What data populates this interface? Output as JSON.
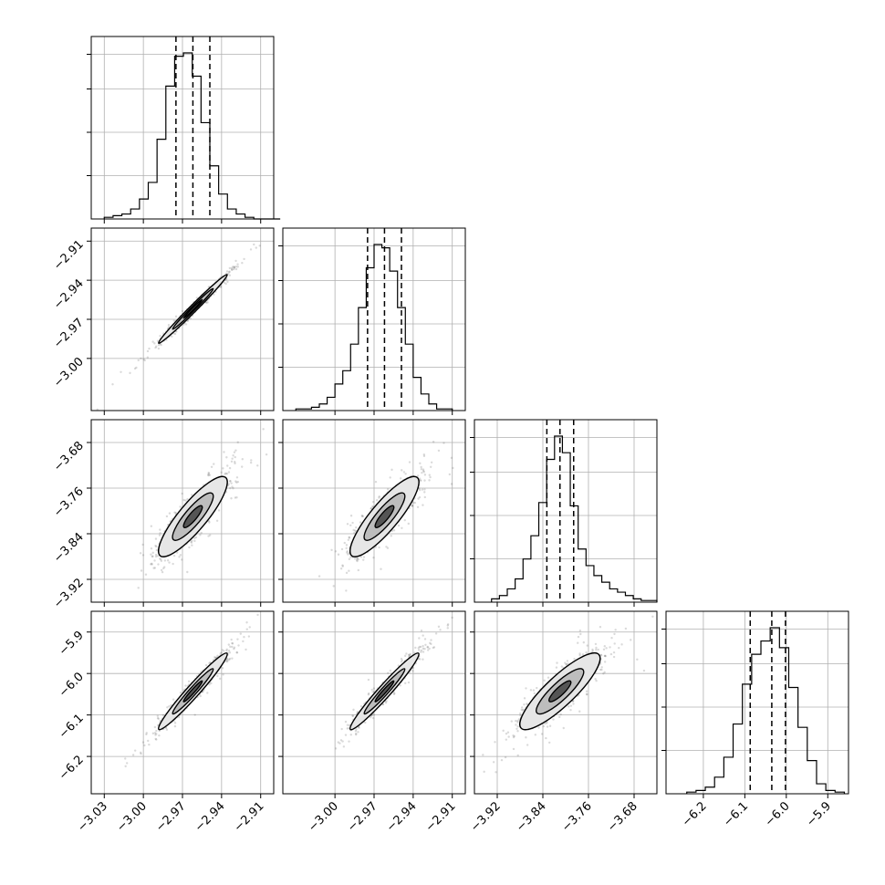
{
  "chart_data": {
    "type": "corner",
    "title": "",
    "grid": true,
    "parameters": [
      {
        "index": 0,
        "xlim": [
          -3.04,
          -2.9
        ],
        "ticks": [
          -3.03,
          -3.0,
          -2.97,
          -2.94,
          -2.91
        ],
        "tick_labels": [
          "−3.03",
          "−3.00",
          "−2.97",
          "−2.94",
          "−2.91"
        ]
      },
      {
        "index": 1,
        "xlim": [
          -3.04,
          -2.9
        ],
        "ticks": [
          -3.0,
          -2.97,
          -2.94,
          -2.91
        ],
        "tick_labels": [
          "−3.00",
          "−2.97",
          "−2.94",
          "−2.91"
        ]
      },
      {
        "index": 2,
        "xlim": [
          -3.96,
          -3.64
        ],
        "ticks": [
          -3.92,
          -3.84,
          -3.76,
          -3.68
        ],
        "tick_labels": [
          "−3.92",
          "−3.84",
          "−3.76",
          "−3.68"
        ]
      },
      {
        "index": 3,
        "xlim": [
          -6.29,
          -5.85
        ],
        "ticks": [
          -6.2,
          -6.1,
          -6.0,
          -5.9
        ],
        "tick_labels": [
          "−6.2",
          "−6.1",
          "−6.0",
          "−5.9"
        ]
      }
    ],
    "histograms": [
      {
        "param": 0,
        "counts": [
          1,
          2,
          3,
          6,
          12,
          22,
          48,
          80,
          98,
          100,
          86,
          58,
          32,
          15,
          6,
          3,
          1,
          0,
          0,
          0
        ],
        "quantiles": [
          -2.975,
          -2.962,
          -2.949
        ],
        "range": [
          -3.03,
          -2.895
        ]
      },
      {
        "param": 1,
        "counts": [
          1,
          1,
          2,
          4,
          8,
          16,
          24,
          40,
          62,
          86,
          100,
          98,
          84,
          62,
          40,
          20,
          10,
          4,
          1,
          1
        ],
        "quantiles": [
          -2.975,
          -2.962,
          -2.949
        ],
        "range": [
          -3.03,
          -2.91
        ]
      },
      {
        "param": 2,
        "counts": [
          2,
          4,
          8,
          14,
          26,
          40,
          60,
          86,
          100,
          90,
          58,
          32,
          22,
          16,
          12,
          8,
          6,
          4,
          2,
          1,
          1
        ],
        "quantiles": [
          -3.833,
          -3.81,
          -3.786
        ],
        "range": [
          -3.93,
          -3.64
        ]
      },
      {
        "param": 3,
        "counts": [
          1,
          2,
          4,
          10,
          22,
          42,
          66,
          84,
          92,
          100,
          88,
          64,
          40,
          20,
          6,
          2,
          1
        ],
        "quantiles": [
          -6.087,
          -6.035,
          -6.002
        ],
        "range": [
          -6.24,
          -5.86
        ]
      }
    ],
    "pairs": [
      {
        "x": 0,
        "y": 1,
        "center": [
          -2.962,
          -2.962
        ],
        "sx": 0.012,
        "sy": 0.012,
        "rho": 0.99,
        "yticks": [
          -2.91,
          -2.94,
          -2.97,
          -3.0
        ],
        "ytick_labels": [
          "−2.91",
          "−2.94",
          "−2.97",
          "−3.00"
        ],
        "ylim": [
          -3.04,
          -2.9
        ]
      },
      {
        "x": 0,
        "y": 2,
        "center": [
          -2.962,
          -3.81
        ],
        "sx": 0.012,
        "sy": 0.032,
        "rho": 0.86,
        "yticks": [
          -3.68,
          -3.76,
          -3.84,
          -3.92
        ],
        "ytick_labels": [
          "−3.68",
          "−3.76",
          "−3.84",
          "−3.92"
        ],
        "ylim": [
          -3.96,
          -3.64
        ]
      },
      {
        "x": 1,
        "y": 2,
        "center": [
          -2.962,
          -3.81
        ],
        "sx": 0.012,
        "sy": 0.032,
        "rho": 0.86,
        "yticks": [],
        "ytick_labels": [],
        "ylim": [
          -3.96,
          -3.64
        ]
      },
      {
        "x": 0,
        "y": 3,
        "center": [
          -2.962,
          -6.043
        ],
        "sx": 0.012,
        "sy": 0.042,
        "rho": 0.97,
        "yticks": [
          -5.9,
          -6.0,
          -6.1,
          -6.2
        ],
        "ytick_labels": [
          "−5.9",
          "−6.0",
          "−6.1",
          "−6.2"
        ],
        "ylim": [
          -6.29,
          -5.85
        ]
      },
      {
        "x": 1,
        "y": 3,
        "center": [
          -2.962,
          -6.043
        ],
        "sx": 0.012,
        "sy": 0.042,
        "rho": 0.97,
        "yticks": [],
        "ytick_labels": [],
        "ylim": [
          -6.29,
          -5.85
        ]
      },
      {
        "x": 2,
        "y": 3,
        "center": [
          -3.81,
          -6.043
        ],
        "sx": 0.032,
        "sy": 0.042,
        "rho": 0.86,
        "yticks": [],
        "ytick_labels": [],
        "ylim": [
          -6.29,
          -5.85
        ]
      }
    ]
  }
}
